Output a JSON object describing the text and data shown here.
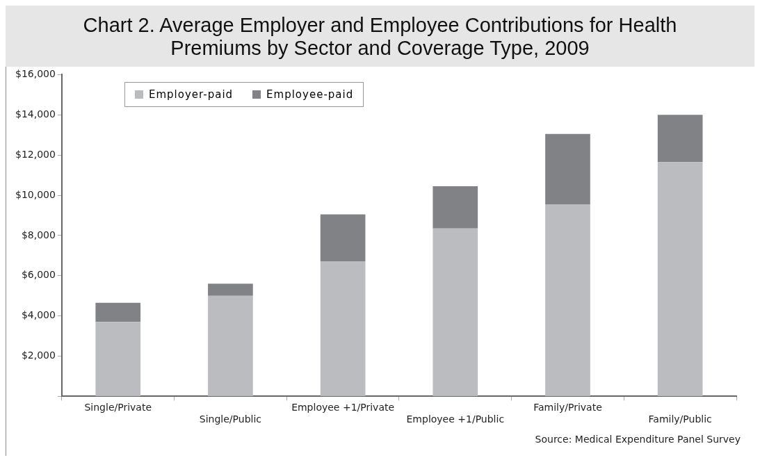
{
  "chart_data": {
    "type": "bar",
    "title": "Chart 2. Average Employer and Employee Contributions for Health Premiums by Sector and Coverage Type, 2009",
    "categories": [
      "Single/Private",
      "Single/Public",
      "Employee +1/Private",
      "Employee +1/Public",
      "Family/Private",
      "Family/Public"
    ],
    "series": [
      {
        "name": "Employer-paid",
        "color": "#bbbcc0",
        "values": [
          3700,
          5000,
          6700,
          8350,
          9550,
          11650
        ]
      },
      {
        "name": "Employee-paid",
        "color": "#818286",
        "values": [
          950,
          600,
          2350,
          2100,
          3500,
          2350
        ]
      }
    ],
    "stacked": true,
    "ylim": [
      0,
      16000
    ],
    "yticks": [
      {
        "value": 0,
        "label": null
      },
      {
        "value": 2000,
        "label": "$2,000"
      },
      {
        "value": 4000,
        "label": "$4,000"
      },
      {
        "value": 6000,
        "label": "$6,000"
      },
      {
        "value": 8000,
        "label": "$8,000"
      },
      {
        "value": 10000,
        "label": "$10,000"
      },
      {
        "value": 12000,
        "label": "$12,000"
      },
      {
        "value": 14000,
        "label": "$14,000"
      },
      {
        "value": 16000,
        "label": "$16,000"
      }
    ],
    "grid": false,
    "legend": "top left",
    "annotations": [
      "Source: Medical Expenditure Panel Survey"
    ]
  }
}
